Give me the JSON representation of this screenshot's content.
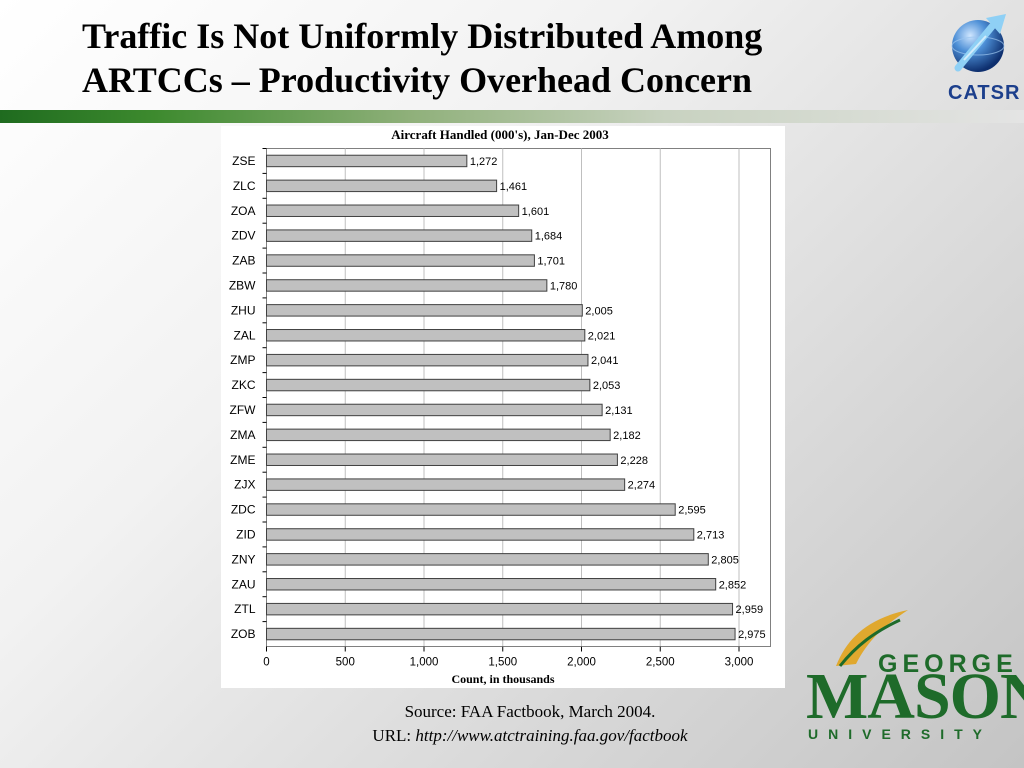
{
  "slide": {
    "title_line1": "Traffic Is Not Uniformly Distributed Among",
    "title_line2": "ARTCCs – Productivity Overhead Concern"
  },
  "logos": {
    "catsr_text": "CATSR",
    "gmu_george": "GEORGE",
    "gmu_mason": "MASON",
    "gmu_university": "UNIVERSITY"
  },
  "source": {
    "line1": "Source: FAA Factbook, March 2004.",
    "url_label": "URL: ",
    "url": "http://www.atctraining.faa.gov/factbook"
  },
  "colors": {
    "bar_fill": "#c0c0c0",
    "bar_stroke": "#404040",
    "brand_green": "#1e6b2a",
    "catsr_blue": "#1c3f8c",
    "gmu_gold": "#e0a82e"
  },
  "chart_data": {
    "type": "bar",
    "orientation": "horizontal",
    "title": "Aircraft Handled (000's), Jan-Dec 2003",
    "xlabel": "Count, in thousands",
    "ylabel": "",
    "categories": [
      "ZSE",
      "ZLC",
      "ZOA",
      "ZDV",
      "ZAB",
      "ZBW",
      "ZHU",
      "ZAL",
      "ZMP",
      "ZKC",
      "ZFW",
      "ZMA",
      "ZME",
      "ZJX",
      "ZDC",
      "ZID",
      "ZNY",
      "ZAU",
      "ZTL",
      "ZOB"
    ],
    "values": [
      1272,
      1461,
      1601,
      1684,
      1701,
      1780,
      2005,
      2021,
      2041,
      2053,
      2131,
      2182,
      2228,
      2274,
      2595,
      2713,
      2805,
      2852,
      2959,
      2975
    ],
    "value_labels": [
      "1,272",
      "1,461",
      "1,601",
      "1,684",
      "1,701",
      "1,780",
      "2,005",
      "2,021",
      "2,041",
      "2,053",
      "2,131",
      "2,182",
      "2,228",
      "2,274",
      "2,595",
      "2,713",
      "2,805",
      "2,852",
      "2,959",
      "2,975"
    ],
    "xlim": [
      0,
      3200
    ],
    "xticks": [
      0,
      500,
      1000,
      1500,
      2000,
      2500,
      3000
    ],
    "xtick_labels": [
      "0",
      "500",
      "1,000",
      "1,500",
      "2,000",
      "2,500",
      "3,000"
    ],
    "grid": "vertical",
    "legend": "none"
  }
}
